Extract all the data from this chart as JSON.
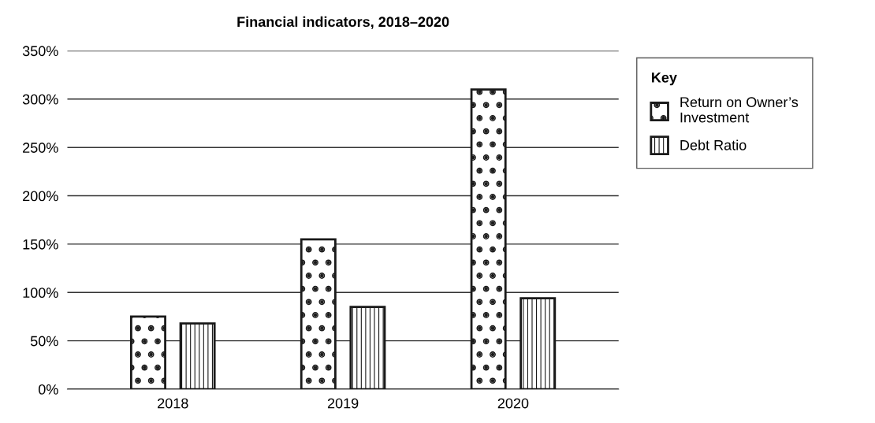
{
  "chart_data": {
    "type": "bar",
    "title": "Financial indicators, 2018–2020",
    "categories": [
      "2018",
      "2019",
      "2020"
    ],
    "series": [
      {
        "name": "Return on Owner’s Investment",
        "color": "#1a1a1a",
        "values": [
          75,
          155,
          310
        ]
      },
      {
        "name": "Debt Ratio",
        "color": "#1a1a1a",
        "values": [
          68,
          85,
          94
        ]
      }
    ],
    "ylim": [
      0,
      350
    ],
    "yticks": [
      {
        "value": 0,
        "label": "0%"
      },
      {
        "value": 50,
        "label": "50%"
      },
      {
        "value": 100,
        "label": "100%"
      },
      {
        "value": 150,
        "label": "150%"
      },
      {
        "value": 200,
        "label": "200%"
      },
      {
        "value": 250,
        "label": "250%"
      },
      {
        "value": 300,
        "label": "300%"
      },
      {
        "value": 350,
        "label": "350%"
      }
    ],
    "grid": "y",
    "legend": "right",
    "legend_title": "Key"
  }
}
